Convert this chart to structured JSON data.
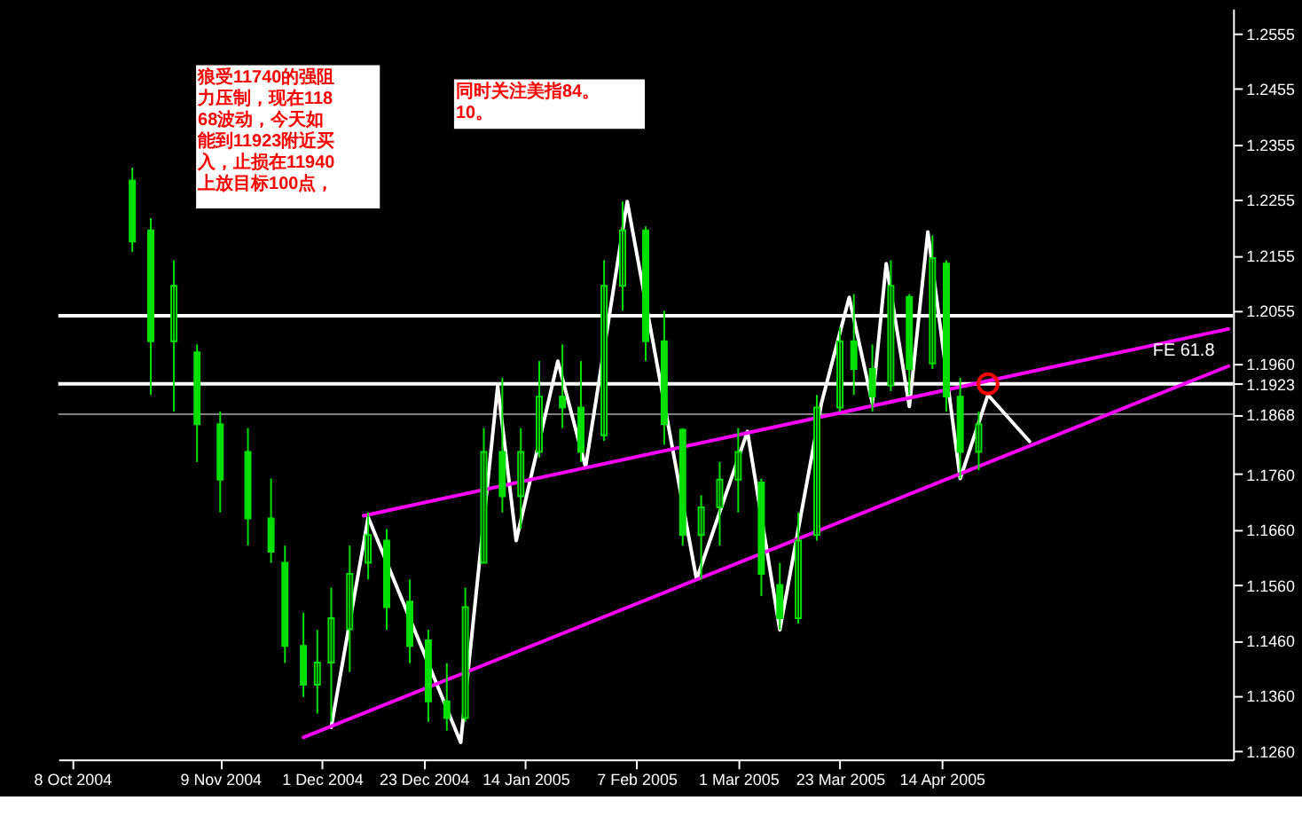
{
  "chart_data": {
    "type": "candlestick",
    "x": [
      "2004-10-21",
      "2004-10-25",
      "2004-10-30",
      "2004-11-04",
      "2004-11-09",
      "2004-11-15",
      "2004-11-20",
      "2004-11-23",
      "2004-11-27",
      "2004-11-30",
      "2004-12-03",
      "2004-12-07",
      "2004-12-11",
      "2004-12-15",
      "2004-12-20",
      "2004-12-24",
      "2004-12-28",
      "2005-01-01",
      "2005-01-05",
      "2005-01-09",
      "2005-01-13",
      "2005-01-17",
      "2005-01-22",
      "2005-01-26",
      "2005-01-31",
      "2005-02-04",
      "2005-02-09",
      "2005-02-13",
      "2005-02-17",
      "2005-02-21",
      "2005-02-25",
      "2005-03-01",
      "2005-03-06",
      "2005-03-10",
      "2005-03-14",
      "2005-03-18",
      "2005-03-23",
      "2005-03-26",
      "2005-03-30",
      "2005-04-03",
      "2005-04-07",
      "2005-04-12",
      "2005-04-15",
      "2005-04-18",
      "2005-04-22"
    ],
    "ohlc": [
      [
        1.229,
        1.2313,
        1.2161,
        1.218
      ],
      [
        1.22,
        1.2222,
        1.1903,
        1.2
      ],
      [
        1.2,
        1.2146,
        1.1873,
        1.21
      ],
      [
        1.198,
        1.1994,
        1.1782,
        1.185
      ],
      [
        1.185,
        1.1873,
        1.1691,
        1.175
      ],
      [
        1.18,
        1.1843,
        1.1631,
        1.168
      ],
      [
        1.168,
        1.1752,
        1.16,
        1.162
      ],
      [
        1.16,
        1.1631,
        1.1419,
        1.145
      ],
      [
        1.145,
        1.151,
        1.1358,
        1.138
      ],
      [
        1.138,
        1.1479,
        1.1328,
        1.142
      ],
      [
        1.142,
        1.1555,
        1.1313,
        1.15
      ],
      [
        1.148,
        1.1631,
        1.1403,
        1.158
      ],
      [
        1.16,
        1.1691,
        1.157,
        1.165
      ],
      [
        1.164,
        1.1661,
        1.1479,
        1.152
      ],
      [
        1.153,
        1.157,
        1.1419,
        1.145
      ],
      [
        1.146,
        1.1479,
        1.1313,
        1.135
      ],
      [
        1.135,
        1.1419,
        1.1297,
        1.132
      ],
      [
        1.132,
        1.1555,
        1.1313,
        1.152
      ],
      [
        1.16,
        1.1843,
        1.16,
        1.18
      ],
      [
        1.18,
        1.1934,
        1.1691,
        1.172
      ],
      [
        1.172,
        1.1843,
        1.1661,
        1.18
      ],
      [
        1.18,
        1.1964,
        1.179,
        1.19
      ],
      [
        1.19,
        1.1994,
        1.1843,
        1.188
      ],
      [
        1.188,
        1.1964,
        1.1782,
        1.18
      ],
      [
        1.183,
        1.2146,
        1.182,
        1.21
      ],
      [
        1.21,
        1.2252,
        1.2055,
        1.22
      ],
      [
        1.22,
        1.2207,
        1.1964,
        1.2
      ],
      [
        1.2,
        1.2055,
        1.1813,
        1.185
      ],
      [
        1.184,
        1.1843,
        1.1631,
        1.165
      ],
      [
        1.165,
        1.1722,
        1.157,
        1.17
      ],
      [
        1.17,
        1.1782,
        1.1631,
        1.175
      ],
      [
        1.175,
        1.1843,
        1.1691,
        1.18
      ],
      [
        1.1745,
        1.1752,
        1.154,
        1.158
      ],
      [
        1.156,
        1.16,
        1.1479,
        1.15
      ],
      [
        1.15,
        1.1691,
        1.149,
        1.164
      ],
      [
        1.165,
        1.1903,
        1.164,
        1.188
      ],
      [
        1.188,
        1.2025,
        1.1873,
        1.2
      ],
      [
        1.2,
        1.2085,
        1.1903,
        1.195
      ],
      [
        1.195,
        1.1994,
        1.1873,
        1.19
      ],
      [
        1.192,
        1.2146,
        1.191,
        1.21
      ],
      [
        1.208,
        1.2085,
        1.1903,
        1.195
      ],
      [
        1.196,
        1.2191,
        1.195,
        1.215
      ],
      [
        1.214,
        1.2146,
        1.1873,
        1.19
      ],
      [
        1.19,
        1.1934,
        1.1752,
        1.18
      ],
      [
        1.18,
        1.1873,
        1.1767,
        1.185
      ]
    ],
    "color": "#00e000",
    "series": [
      {
        "type": "line",
        "color": "#ffffff",
        "x": [
          "2004-12-03",
          "2004-12-11",
          "2004-12-31",
          "2005-01-08",
          "2005-01-12",
          "2005-01-21",
          "2005-01-27",
          "2005-02-05",
          "2005-02-20",
          "2005-03-03",
          "2005-03-10",
          "2005-03-19",
          "2005-03-25",
          "2005-03-30",
          "2005-04-02",
          "2005-04-07",
          "2005-04-11",
          "2005-04-18",
          "2005-04-24"
        ],
        "values": [
          1.1303,
          1.1682,
          1.1276,
          1.1919,
          1.164,
          1.1964,
          1.1773,
          1.2252,
          1.157,
          1.1837,
          1.1479,
          1.1888,
          1.2079,
          1.1888,
          1.214,
          1.1882,
          1.2197,
          1.1752,
          1.1903
        ]
      },
      {
        "type": "line",
        "color": "#ffffff",
        "x": [
          "2005-04-24",
          "2005-05-03"
        ],
        "values": [
          1.1903,
          1.1819
        ]
      },
      {
        "type": "line",
        "color": "#ff00ff",
        "x": [
          "2004-12-10",
          "2005-06-15"
        ],
        "values": [
          1.1685,
          1.2022
        ]
      },
      {
        "type": "line",
        "color": "#ff00ff",
        "x": [
          "2004-11-27",
          "2005-06-15"
        ],
        "values": [
          1.1285,
          1.1955
        ]
      },
      {
        "type": "scatter",
        "color": "#ff0000",
        "marker": "circle",
        "x": [
          "2005-04-24"
        ],
        "values": [
          1.1923
        ]
      }
    ],
    "ref_lines": [
      {
        "axis": "y",
        "value": 1.2046,
        "color": "#ffffff"
      },
      {
        "axis": "y",
        "value": 1.1923,
        "color": "#ffffff"
      },
      {
        "axis": "y",
        "value": 1.1868,
        "color": "#808080"
      }
    ],
    "xlim": [
      "2004-10-05",
      "2005-06-16"
    ],
    "xticks": [
      {
        "value": "2004-10-08",
        "label": "8 Oct 2004"
      },
      {
        "value": "2004-11-09",
        "label": "9 Nov 2004"
      },
      {
        "value": "2004-12-01",
        "label": "1 Dec 2004"
      },
      {
        "value": "2004-12-23",
        "label": "23 Dec 2004"
      },
      {
        "value": "2005-01-14",
        "label": "14 Jan 2005"
      },
      {
        "value": "2005-02-07",
        "label": "7 Feb 2005"
      },
      {
        "value": "2005-03-01",
        "label": "1 Mar 2005"
      },
      {
        "value": "2005-03-23",
        "label": "23 Mar 2005"
      },
      {
        "value": "2005-04-14",
        "label": "14 Apr 2005"
      }
    ],
    "ylim": [
      1.1245,
      1.26
    ],
    "yticks": [
      1.2555,
      1.2455,
      1.2355,
      1.2255,
      1.2155,
      1.2055,
      {
        "value": 1.196,
        "label": "1.1960"
      },
      1.1923,
      1.1868,
      {
        "value": 1.176,
        "label": "1.1760"
      },
      {
        "value": 1.166,
        "label": "1.1660"
      },
      {
        "value": 1.156,
        "label": "1.1560"
      },
      {
        "value": 1.146,
        "label": "1.1460"
      },
      {
        "value": 1.136,
        "label": "1.1360"
      },
      {
        "value": 1.126,
        "label": "1.1260"
      }
    ],
    "annotations": [
      "狼受11740的强阻力压制，现在11868波动，今天如能到11923附近买入，止损在11940上放目标100点，",
      "同时关注美指84。10。",
      {
        "text": "FE 61.8",
        "x": "2005-06-12",
        "y": 1.1955
      }
    ],
    "grid": false
  }
}
